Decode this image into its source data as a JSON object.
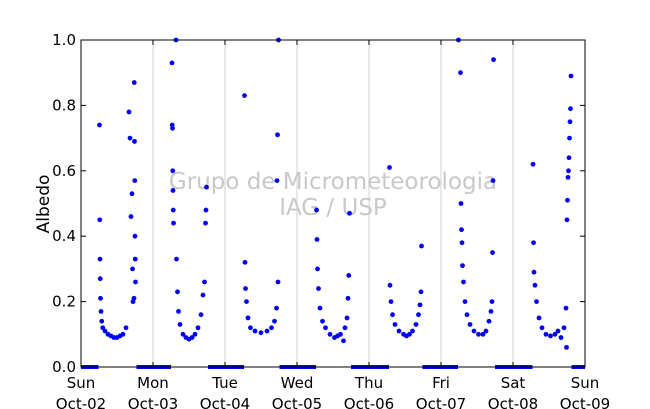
{
  "watermark": {
    "line1": "Grupo de Micrometeorologia",
    "line2": "IAG / USP"
  },
  "chart_data": {
    "type": "scatter",
    "title": "",
    "xlabel": "",
    "ylabel": "Albedo",
    "xlim": [
      "2016-10-02T00:00",
      "2016-10-09T00:00"
    ],
    "ylim": [
      0,
      1
    ],
    "grid": "vertical, daily",
    "yticks": [
      "0.0",
      "0.2",
      "0.4",
      "0.6",
      "0.8",
      "1.0"
    ],
    "xticks": [
      {
        "day": "Sun",
        "date": "Oct-02"
      },
      {
        "day": "Mon",
        "date": "Oct-03"
      },
      {
        "day": "Tue",
        "date": "Oct-04"
      },
      {
        "day": "Wed",
        "date": "Oct-05"
      },
      {
        "day": "Thu",
        "date": "Oct-06"
      },
      {
        "day": "Fri",
        "date": "Oct-07"
      },
      {
        "day": "Sat",
        "date": "Oct-08"
      },
      {
        "day": "Sun",
        "date": "Oct-09"
      }
    ],
    "series": [
      {
        "color": "#0000ff",
        "points": [
          [
            "2016-10-02T06:10",
            0.74
          ],
          [
            "2016-10-02T06:15",
            0.45
          ],
          [
            "2016-10-02T06:20",
            0.33
          ],
          [
            "2016-10-02T06:25",
            0.27
          ],
          [
            "2016-10-02T06:30",
            0.21
          ],
          [
            "2016-10-02T06:40",
            0.17
          ],
          [
            "2016-10-02T06:55",
            0.14
          ],
          [
            "2016-10-02T07:15",
            0.12
          ],
          [
            "2016-10-02T08:00",
            0.11
          ],
          [
            "2016-10-02T09:00",
            0.1
          ],
          [
            "2016-10-02T10:00",
            0.095
          ],
          [
            "2016-10-02T11:00",
            0.09
          ],
          [
            "2016-10-02T12:00",
            0.09
          ],
          [
            "2016-10-02T13:00",
            0.095
          ],
          [
            "2016-10-02T14:00",
            0.1
          ],
          [
            "2016-10-02T15:00",
            0.12
          ],
          [
            "2016-10-02T16:00",
            0.78
          ],
          [
            "2016-10-02T16:20",
            0.7
          ],
          [
            "2016-10-02T16:40",
            0.46
          ],
          [
            "2016-10-02T17:00",
            0.53
          ],
          [
            "2016-10-02T17:10",
            0.3
          ],
          [
            "2016-10-02T17:20",
            0.2
          ],
          [
            "2016-10-02T17:40",
            0.21
          ],
          [
            "2016-10-02T17:45",
            0.87
          ],
          [
            "2016-10-02T17:50",
            0.69
          ],
          [
            "2016-10-02T17:55",
            0.57
          ],
          [
            "2016-10-02T18:00",
            0.4
          ],
          [
            "2016-10-02T18:05",
            0.33
          ],
          [
            "2016-10-02T18:10",
            0.26
          ],
          [
            "2016-10-03T06:20",
            0.93
          ],
          [
            "2016-10-03T06:25",
            0.74
          ],
          [
            "2016-10-03T06:30",
            0.73
          ],
          [
            "2016-10-03T06:35",
            0.6
          ],
          [
            "2016-10-03T06:40",
            0.54
          ],
          [
            "2016-10-03T06:45",
            0.48
          ],
          [
            "2016-10-03T06:50",
            0.44
          ],
          [
            "2016-10-03T07:40",
            1.0
          ],
          [
            "2016-10-03T07:50",
            0.33
          ],
          [
            "2016-10-03T08:10",
            0.23
          ],
          [
            "2016-10-03T08:30",
            0.17
          ],
          [
            "2016-10-03T09:00",
            0.13
          ],
          [
            "2016-10-03T10:00",
            0.1
          ],
          [
            "2016-10-03T11:00",
            0.09
          ],
          [
            "2016-10-03T12:00",
            0.085
          ],
          [
            "2016-10-03T13:00",
            0.09
          ],
          [
            "2016-10-03T14:00",
            0.1
          ],
          [
            "2016-10-03T15:00",
            0.12
          ],
          [
            "2016-10-03T16:00",
            0.16
          ],
          [
            "2016-10-03T16:40",
            0.22
          ],
          [
            "2016-10-03T17:10",
            0.26
          ],
          [
            "2016-10-03T17:30",
            0.44
          ],
          [
            "2016-10-03T17:40",
            0.48
          ],
          [
            "2016-10-03T17:50",
            0.55
          ],
          [
            "2016-10-04T06:30",
            0.83
          ],
          [
            "2016-10-04T06:40",
            0.32
          ],
          [
            "2016-10-04T06:50",
            0.24
          ],
          [
            "2016-10-04T07:10",
            0.2
          ],
          [
            "2016-10-04T07:40",
            0.15
          ],
          [
            "2016-10-04T08:30",
            0.12
          ],
          [
            "2016-10-04T10:00",
            0.11
          ],
          [
            "2016-10-04T12:00",
            0.105
          ],
          [
            "2016-10-04T14:00",
            0.11
          ],
          [
            "2016-10-04T15:30",
            0.12
          ],
          [
            "2016-10-04T16:30",
            0.14
          ],
          [
            "2016-10-04T17:10",
            0.18
          ],
          [
            "2016-10-04T17:20",
            0.57
          ],
          [
            "2016-10-04T17:30",
            0.71
          ],
          [
            "2016-10-04T17:40",
            0.26
          ],
          [
            "2016-10-04T17:50",
            1.0
          ],
          [
            "2016-10-05T06:30",
            0.48
          ],
          [
            "2016-10-05T06:40",
            0.39
          ],
          [
            "2016-10-05T06:50",
            0.3
          ],
          [
            "2016-10-05T07:10",
            0.24
          ],
          [
            "2016-10-05T07:40",
            0.18
          ],
          [
            "2016-10-05T08:30",
            0.14
          ],
          [
            "2016-10-05T09:30",
            0.12
          ],
          [
            "2016-10-05T11:00",
            0.1
          ],
          [
            "2016-10-05T12:30",
            0.09
          ],
          [
            "2016-10-05T13:30",
            0.095
          ],
          [
            "2016-10-05T14:30",
            0.1
          ],
          [
            "2016-10-05T15:30",
            0.08
          ],
          [
            "2016-10-05T16:00",
            0.12
          ],
          [
            "2016-10-05T16:40",
            0.15
          ],
          [
            "2016-10-05T17:00",
            0.21
          ],
          [
            "2016-10-05T17:15",
            0.28
          ],
          [
            "2016-10-05T17:30",
            0.47
          ],
          [
            "2016-10-06T06:50",
            0.61
          ],
          [
            "2016-10-06T07:00",
            0.25
          ],
          [
            "2016-10-06T07:20",
            0.2
          ],
          [
            "2016-10-06T07:50",
            0.16
          ],
          [
            "2016-10-06T08:40",
            0.13
          ],
          [
            "2016-10-06T10:00",
            0.11
          ],
          [
            "2016-10-06T11:30",
            0.1
          ],
          [
            "2016-10-06T12:30",
            0.095
          ],
          [
            "2016-10-06T13:30",
            0.1
          ],
          [
            "2016-10-06T14:30",
            0.11
          ],
          [
            "2016-10-06T15:40",
            0.13
          ],
          [
            "2016-10-06T16:30",
            0.16
          ],
          [
            "2016-10-06T17:00",
            0.19
          ],
          [
            "2016-10-06T17:20",
            0.23
          ],
          [
            "2016-10-06T17:30",
            0.37
          ],
          [
            "2016-10-07T05:50",
            1.0
          ],
          [
            "2016-10-07T06:30",
            0.9
          ],
          [
            "2016-10-07T06:40",
            0.5
          ],
          [
            "2016-10-07T06:50",
            0.42
          ],
          [
            "2016-10-07T07:00",
            0.38
          ],
          [
            "2016-10-07T07:10",
            0.31
          ],
          [
            "2016-10-07T07:30",
            0.26
          ],
          [
            "2016-10-07T08:00",
            0.2
          ],
          [
            "2016-10-07T08:40",
            0.16
          ],
          [
            "2016-10-07T09:40",
            0.13
          ],
          [
            "2016-10-07T11:00",
            0.11
          ],
          [
            "2016-10-07T12:30",
            0.1
          ],
          [
            "2016-10-07T14:00",
            0.1
          ],
          [
            "2016-10-07T15:00",
            0.11
          ],
          [
            "2016-10-07T16:00",
            0.14
          ],
          [
            "2016-10-07T16:40",
            0.17
          ],
          [
            "2016-10-07T17:00",
            0.2
          ],
          [
            "2016-10-07T17:10",
            0.35
          ],
          [
            "2016-10-07T17:20",
            0.57
          ],
          [
            "2016-10-07T17:30",
            0.94
          ],
          [
            "2016-10-08T06:40",
            0.62
          ],
          [
            "2016-10-08T06:50",
            0.38
          ],
          [
            "2016-10-08T07:00",
            0.29
          ],
          [
            "2016-10-08T07:20",
            0.25
          ],
          [
            "2016-10-08T07:50",
            0.2
          ],
          [
            "2016-10-08T08:40",
            0.15
          ],
          [
            "2016-10-08T09:40",
            0.12
          ],
          [
            "2016-10-08T11:00",
            0.1
          ],
          [
            "2016-10-08T12:30",
            0.095
          ],
          [
            "2016-10-08T14:00",
            0.1
          ],
          [
            "2016-10-08T15:00",
            0.11
          ],
          [
            "2016-10-08T16:00",
            0.09
          ],
          [
            "2016-10-08T17:00",
            0.12
          ],
          [
            "2016-10-08T17:40",
            0.18
          ],
          [
            "2016-10-08T17:50",
            0.06
          ],
          [
            "2016-10-08T18:00",
            0.45
          ],
          [
            "2016-10-08T18:10",
            0.51
          ],
          [
            "2016-10-08T18:20",
            0.58
          ],
          [
            "2016-10-08T18:30",
            0.6
          ],
          [
            "2016-10-08T18:40",
            0.64
          ],
          [
            "2016-10-08T18:50",
            0.7
          ],
          [
            "2016-10-08T19:00",
            0.75
          ],
          [
            "2016-10-08T19:10",
            0.79
          ],
          [
            "2016-10-08T19:20",
            0.89
          ]
        ]
      }
    ],
    "night_ranges": [
      [
        "2016-10-02T00:00",
        "2016-10-02T05:50"
      ],
      [
        "2016-10-02T18:30",
        "2016-10-03T06:00"
      ],
      [
        "2016-10-03T18:20",
        "2016-10-04T06:20"
      ],
      [
        "2016-10-04T18:10",
        "2016-10-05T06:20"
      ],
      [
        "2016-10-05T18:00",
        "2016-10-06T06:40"
      ],
      [
        "2016-10-06T17:50",
        "2016-10-07T05:40"
      ],
      [
        "2016-10-07T18:00",
        "2016-10-08T06:30"
      ],
      [
        "2016-10-08T19:30",
        "2016-10-09T00:00"
      ]
    ],
    "night_value": 0
  }
}
